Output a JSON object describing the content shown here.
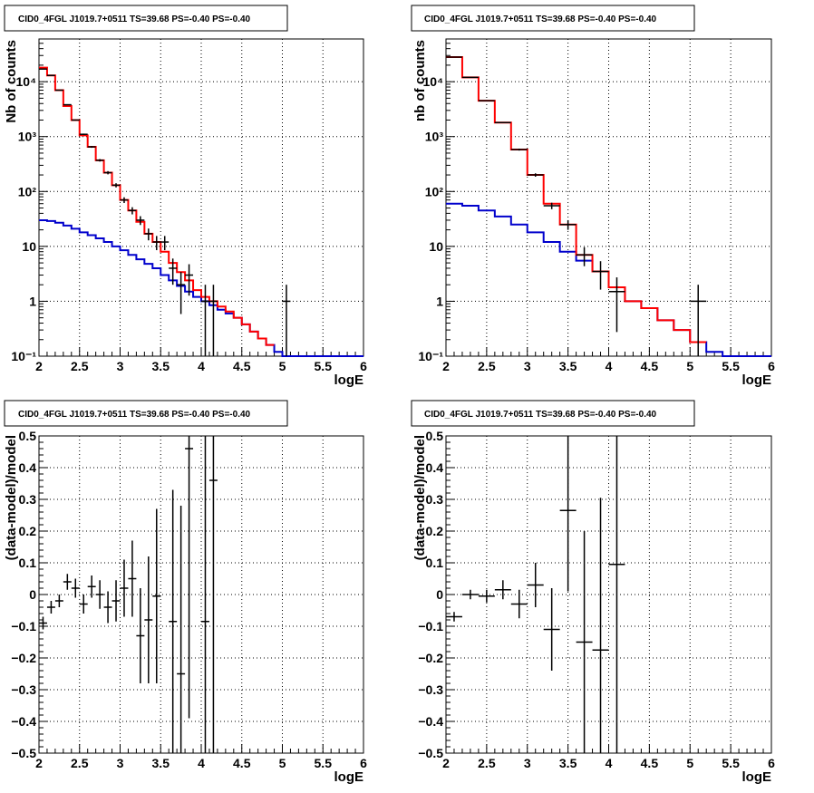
{
  "colors": {
    "model": "#ff0000",
    "background": "#0000cc",
    "data": "#000000",
    "grid": "#000000"
  },
  "chart_data": [
    {
      "type": "line",
      "title": "CID0_4FGL J1019.7+0511 TS=39.68 PS=-0.40 PS=-0.40",
      "xlabel": "logE",
      "ylabel": "Nb of counts",
      "xlim": [
        2,
        6
      ],
      "ylim": [
        0.1,
        60000
      ],
      "yscale": "log",
      "xticks": [
        "2",
        "2.5",
        "3",
        "3.5",
        "4",
        "4.5",
        "5",
        "5.5",
        "6"
      ],
      "yticks": [
        {
          "v": 0.1,
          "label": "10⁻¹"
        },
        {
          "v": 1,
          "label": "1"
        },
        {
          "v": 10,
          "label": "10"
        },
        {
          "v": 100,
          "label": "10²"
        },
        {
          "v": 1000,
          "label": "10³"
        },
        {
          "v": 10000,
          "label": "10⁴"
        }
      ],
      "grid": true,
      "bin_edges": [
        2.0,
        2.1,
        2.2,
        2.3,
        2.4,
        2.5,
        2.6,
        2.7,
        2.8,
        2.9,
        3.0,
        3.1,
        3.2,
        3.3,
        3.4,
        3.5,
        3.6,
        3.7,
        3.8,
        3.9,
        4.0,
        4.1,
        4.2,
        4.3,
        4.4,
        4.5,
        4.6,
        4.7,
        4.8,
        4.9,
        5.0,
        5.1,
        5.2,
        5.3,
        5.4,
        5.5,
        5.6,
        5.7,
        5.8,
        5.9,
        6.0
      ],
      "series": [
        {
          "role": "model",
          "values": [
            18000,
            13000,
            7000,
            3600,
            2000,
            1050,
            650,
            370,
            220,
            130,
            70,
            45,
            28,
            17,
            12,
            8,
            5,
            3.4,
            2.4,
            1.6,
            1.2,
            1.0,
            0.8,
            0.65,
            0.5,
            0.38,
            0.28,
            0.21,
            0.16
          ]
        },
        {
          "role": "background",
          "values": [
            30,
            29,
            27,
            24,
            21,
            18,
            16,
            14,
            12,
            10,
            8.5,
            7,
            5.8,
            4.8,
            4,
            3,
            2.4,
            1.9,
            1.5,
            1.2,
            1.0,
            0.85,
            0.7,
            0.6,
            0.5,
            0.38,
            0.28,
            0.21,
            0.16,
            0.12,
            0.1,
            0.1,
            0.1,
            0.1,
            0.1,
            0.1,
            0.1,
            0.1,
            0.1,
            0.1
          ]
        },
        {
          "role": "data",
          "points": [
            [
              2.05,
              17000
            ],
            [
              2.15,
              13000
            ],
            [
              2.25,
              7000
            ],
            [
              2.35,
              3800
            ],
            [
              2.45,
              2000
            ],
            [
              2.55,
              1100
            ],
            [
              2.65,
              650
            ],
            [
              2.75,
              370
            ],
            [
              2.85,
              220
            ],
            [
              2.95,
              130
            ],
            [
              3.05,
              70
            ],
            [
              3.15,
              45
            ],
            [
              3.25,
              30
            ],
            [
              3.35,
              17
            ],
            [
              3.45,
              12
            ],
            [
              3.55,
              12
            ],
            [
              3.65,
              4
            ],
            [
              3.75,
              2
            ],
            [
              3.85,
              3
            ],
            [
              4.05,
              1
            ],
            [
              4.15,
              1
            ],
            [
              5.05,
              1
            ]
          ]
        }
      ]
    },
    {
      "type": "line",
      "title": "CID0_4FGL J1019.7+0511 TS=39.68 PS=-0.40 PS=-0.40",
      "xlabel": "logE",
      "ylabel": "nb of counts",
      "xlim": [
        2,
        6
      ],
      "ylim": [
        0.1,
        60000
      ],
      "yscale": "log",
      "xticks": [
        "2",
        "2.5",
        "3",
        "3.5",
        "4",
        "4.5",
        "5",
        "5.5",
        "6"
      ],
      "yticks": [
        {
          "v": 0.1,
          "label": "10⁻¹"
        },
        {
          "v": 1,
          "label": "1"
        },
        {
          "v": 10,
          "label": "10"
        },
        {
          "v": 100,
          "label": "10²"
        },
        {
          "v": 1000,
          "label": "10³"
        },
        {
          "v": 10000,
          "label": "10⁴"
        }
      ],
      "grid": true,
      "bin_edges": [
        2.0,
        2.2,
        2.4,
        2.6,
        2.8,
        3.0,
        3.2,
        3.4,
        3.6,
        3.8,
        4.0,
        4.2,
        4.4,
        4.6,
        4.8,
        5.0,
        5.2,
        5.4,
        5.6,
        5.8,
        6.0
      ],
      "series": [
        {
          "role": "model",
          "values": [
            28000,
            12000,
            4500,
            1800,
            580,
            200,
            60,
            25,
            7,
            3.5,
            1.8,
            1.0,
            0.75,
            0.45,
            0.3,
            0.18
          ]
        },
        {
          "role": "background",
          "values": [
            60,
            55,
            45,
            35,
            25,
            18,
            12,
            8,
            5.5,
            3.5,
            1.8,
            1.0,
            0.75,
            0.45,
            0.3,
            0.18,
            0.12,
            0.1,
            0.1,
            0.1
          ]
        },
        {
          "role": "data",
          "points": [
            [
              2.1,
              28000
            ],
            [
              2.3,
              12000
            ],
            [
              2.5,
              4500
            ],
            [
              2.7,
              1800
            ],
            [
              2.9,
              580
            ],
            [
              3.1,
              200
            ],
            [
              3.3,
              55
            ],
            [
              3.5,
              25
            ],
            [
              3.7,
              7
            ],
            [
              3.9,
              3.5
            ],
            [
              4.1,
              1.5
            ],
            [
              5.1,
              1
            ]
          ]
        }
      ]
    },
    {
      "type": "scatter",
      "title": "CID0_4FGL J1019.7+0511 TS=39.68 PS=-0.40 PS=-0.40",
      "xlabel": "logE",
      "ylabel": "(data-model)/model",
      "xlim": [
        2,
        6
      ],
      "ylim": [
        -0.5,
        0.5
      ],
      "xticks": [
        "2",
        "2.5",
        "3",
        "3.5",
        "4",
        "4.5",
        "5",
        "5.5",
        "6"
      ],
      "yticks": [
        {
          "v": -0.5,
          "label": "−0.5"
        },
        {
          "v": -0.4,
          "label": "−0.4"
        },
        {
          "v": -0.3,
          "label": "−0.3"
        },
        {
          "v": -0.2,
          "label": "−0.2"
        },
        {
          "v": -0.1,
          "label": "−0.1"
        },
        {
          "v": 0,
          "label": "0"
        },
        {
          "v": 0.1,
          "label": "0.1"
        },
        {
          "v": 0.2,
          "label": "0.2"
        },
        {
          "v": 0.3,
          "label": "0.3"
        },
        {
          "v": 0.4,
          "label": "0.4"
        },
        {
          "v": 0.5,
          "label": "0.5"
        }
      ],
      "grid": true,
      "bin_width": 0.1,
      "points": [
        {
          "x": 2.05,
          "y": -0.09,
          "err": 0.02
        },
        {
          "x": 2.15,
          "y": -0.04,
          "err": 0.02
        },
        {
          "x": 2.25,
          "y": -0.02,
          "err": 0.02
        },
        {
          "x": 2.35,
          "y": 0.04,
          "err": 0.025
        },
        {
          "x": 2.45,
          "y": 0.02,
          "err": 0.03
        },
        {
          "x": 2.55,
          "y": -0.03,
          "err": 0.03
        },
        {
          "x": 2.65,
          "y": 0.025,
          "err": 0.035
        },
        {
          "x": 2.75,
          "y": 0.0,
          "err": 0.045
        },
        {
          "x": 2.85,
          "y": -0.04,
          "err": 0.05
        },
        {
          "x": 2.95,
          "y": -0.02,
          "err": 0.065
        },
        {
          "x": 3.05,
          "y": 0.02,
          "err": 0.09
        },
        {
          "x": 3.15,
          "y": 0.05,
          "err": 0.12
        },
        {
          "x": 3.25,
          "y": -0.13,
          "err": 0.15
        },
        {
          "x": 3.35,
          "y": -0.08,
          "err": 0.2
        },
        {
          "x": 3.45,
          "y": -0.005,
          "err": 0.275
        },
        {
          "x": 3.65,
          "y": -0.085,
          "err": 0.415
        },
        {
          "x": 3.75,
          "y": -0.25,
          "err": 0.53
        },
        {
          "x": 3.85,
          "y": 0.46,
          "err": 0.85
        },
        {
          "x": 4.05,
          "y": -0.085,
          "err": 1.0
        },
        {
          "x": 4.15,
          "y": 0.36,
          "err": 1.0
        }
      ]
    },
    {
      "type": "scatter",
      "title": "CID0_4FGL J1019.7+0511 TS=39.68 PS=-0.40 PS=-0.40",
      "xlabel": "logE",
      "ylabel": "(data-model)/model",
      "xlim": [
        2,
        6
      ],
      "ylim": [
        -0.5,
        0.5
      ],
      "xticks": [
        "2",
        "2.5",
        "3",
        "3.5",
        "4",
        "4.5",
        "5",
        "5.5",
        "6"
      ],
      "yticks": [
        {
          "v": -0.5,
          "label": "−0.5"
        },
        {
          "v": -0.4,
          "label": "−0.4"
        },
        {
          "v": -0.3,
          "label": "−0.3"
        },
        {
          "v": -0.2,
          "label": "−0.2"
        },
        {
          "v": -0.1,
          "label": "−0.1"
        },
        {
          "v": 0,
          "label": "0"
        },
        {
          "v": 0.1,
          "label": "0.1"
        },
        {
          "v": 0.2,
          "label": "0.2"
        },
        {
          "v": 0.3,
          "label": "0.3"
        },
        {
          "v": 0.4,
          "label": "0.4"
        },
        {
          "v": 0.5,
          "label": "0.5"
        }
      ],
      "grid": true,
      "bin_width": 0.2,
      "points": [
        {
          "x": 2.1,
          "y": -0.07,
          "err": 0.015
        },
        {
          "x": 2.3,
          "y": 0.0,
          "err": 0.015
        },
        {
          "x": 2.5,
          "y": -0.005,
          "err": 0.02
        },
        {
          "x": 2.7,
          "y": 0.015,
          "err": 0.03
        },
        {
          "x": 2.9,
          "y": -0.03,
          "err": 0.045
        },
        {
          "x": 3.1,
          "y": 0.03,
          "err": 0.07
        },
        {
          "x": 3.3,
          "y": -0.11,
          "err": 0.13
        },
        {
          "x": 3.5,
          "y": 0.265,
          "err": 0.255
        },
        {
          "x": 3.7,
          "y": -0.15,
          "err": 0.35
        },
        {
          "x": 3.9,
          "y": -0.175,
          "err": 0.48
        },
        {
          "x": 4.1,
          "y": 0.095,
          "err": 0.6
        }
      ]
    }
  ]
}
